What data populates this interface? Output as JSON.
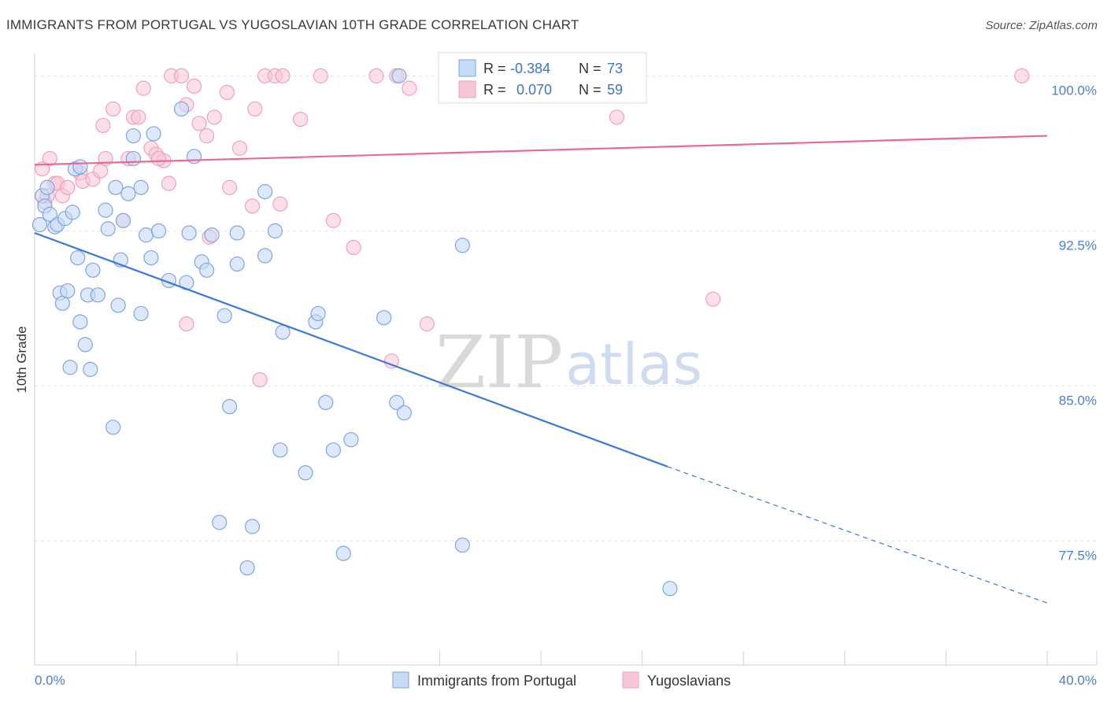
{
  "title": "IMMIGRANTS FROM PORTUGAL VS YUGOSLAVIAN 10TH GRADE CORRELATION CHART",
  "source": "Source: ZipAtlas.com",
  "watermark": {
    "zip": "ZIP",
    "atlas": "atlas"
  },
  "colors": {
    "blue": "#3c78d8",
    "blue_fill": "#c6dbf7",
    "blue_stroke": "#7ea6e0",
    "pink": "#e86a94",
    "pink_fill": "#f8c7d6",
    "pink_stroke": "#f0a0ba",
    "grid": "#e3e3e3",
    "tick_label": "#4a7fd0"
  },
  "legend": {
    "rows": [
      {
        "r_label": "R =",
        "r_value": "-0.384",
        "n_label": "N =",
        "n_value": "73"
      },
      {
        "r_label": "R =",
        "r_value": "0.070",
        "n_label": "N =",
        "n_value": "59"
      }
    ]
  },
  "chart_data": {
    "type": "scatter",
    "title": "IMMIGRANTS FROM PORTUGAL VS YUGOSLAVIAN 10TH GRADE CORRELATION CHART",
    "xlabel": "",
    "ylabel": "10th Grade",
    "xlim": [
      0,
      40
    ],
    "ylim": [
      71.5,
      100.7
    ],
    "x_tick_labels": [
      "0.0%",
      "40.0%"
    ],
    "y_ticks": [
      77.5,
      85.0,
      92.5,
      100.0
    ],
    "y_tick_labels": [
      "77.5%",
      "85.0%",
      "92.5%",
      "100.0%"
    ],
    "grid": true,
    "legend_position": "top-center",
    "series": [
      {
        "name": "Immigrants from Portugal",
        "color": "#3c78d8",
        "r": -0.384,
        "n": 73,
        "trend": {
          "x0": 0,
          "y0": 92.4,
          "x1": 25,
          "y1": 81.1,
          "dashed_to_x": 40,
          "dashed_to_y": 74.5
        },
        "points": [
          [
            0.3,
            94.2
          ],
          [
            0.4,
            93.7
          ],
          [
            0.5,
            94.6
          ],
          [
            0.6,
            93.3
          ],
          [
            0.8,
            92.7
          ],
          [
            0.9,
            92.8
          ],
          [
            1.2,
            93.1
          ],
          [
            1.5,
            93.4
          ],
          [
            1.6,
            95.5
          ],
          [
            1.8,
            95.6
          ],
          [
            1.7,
            91.2
          ],
          [
            1.0,
            89.5
          ],
          [
            1.1,
            89.0
          ],
          [
            1.3,
            89.6
          ],
          [
            1.8,
            88.1
          ],
          [
            2.1,
            89.4
          ],
          [
            2.0,
            87.0
          ],
          [
            1.4,
            85.9
          ],
          [
            2.2,
            85.8
          ],
          [
            2.3,
            90.6
          ],
          [
            2.5,
            89.4
          ],
          [
            2.8,
            93.5
          ],
          [
            2.9,
            92.6
          ],
          [
            3.2,
            94.6
          ],
          [
            3.5,
            93.0
          ],
          [
            3.7,
            94.3
          ],
          [
            3.9,
            96.0
          ],
          [
            3.9,
            97.1
          ],
          [
            4.2,
            94.6
          ],
          [
            4.7,
            97.2
          ],
          [
            4.4,
            92.3
          ],
          [
            4.6,
            91.2
          ],
          [
            4.9,
            92.5
          ],
          [
            3.3,
            88.9
          ],
          [
            3.4,
            91.1
          ],
          [
            4.2,
            88.5
          ],
          [
            3.1,
            83.0
          ],
          [
            5.3,
            90.1
          ],
          [
            6.0,
            90.0
          ],
          [
            5.8,
            98.4
          ],
          [
            6.3,
            96.1
          ],
          [
            6.1,
            92.4
          ],
          [
            6.6,
            91.0
          ],
          [
            6.8,
            90.6
          ],
          [
            7.0,
            92.3
          ],
          [
            7.5,
            88.4
          ],
          [
            7.7,
            84.0
          ],
          [
            8.0,
            92.4
          ],
          [
            8.0,
            90.9
          ],
          [
            7.3,
            78.4
          ],
          [
            8.6,
            78.2
          ],
          [
            8.4,
            76.2
          ],
          [
            9.1,
            91.3
          ],
          [
            9.1,
            94.4
          ],
          [
            9.5,
            92.5
          ],
          [
            9.8,
            87.6
          ],
          [
            9.7,
            81.9
          ],
          [
            10.7,
            80.8
          ],
          [
            11.1,
            88.1
          ],
          [
            11.2,
            88.5
          ],
          [
            11.5,
            84.2
          ],
          [
            11.8,
            81.9
          ],
          [
            12.5,
            82.4
          ],
          [
            12.2,
            76.9
          ],
          [
            13.8,
            88.3
          ],
          [
            14.3,
            84.2
          ],
          [
            14.4,
            100.0
          ],
          [
            14.6,
            83.7
          ],
          [
            16.5,
            100.0
          ],
          [
            16.9,
            91.8
          ],
          [
            16.9,
            77.3
          ],
          [
            25.1,
            75.2
          ],
          [
            0.2,
            92.8
          ]
        ]
      },
      {
        "name": "Yugoslavians",
        "color": "#e86a94",
        "r": 0.07,
        "n": 59,
        "trend": {
          "x0": 0,
          "y0": 95.7,
          "x1": 40,
          "y1": 97.1
        },
        "points": [
          [
            0.3,
            95.5
          ],
          [
            0.4,
            93.9
          ],
          [
            0.5,
            94.2
          ],
          [
            0.6,
            96.0
          ],
          [
            0.8,
            94.8
          ],
          [
            0.9,
            94.8
          ],
          [
            1.1,
            94.2
          ],
          [
            1.3,
            94.6
          ],
          [
            1.8,
            95.3
          ],
          [
            1.9,
            94.9
          ],
          [
            2.3,
            95.0
          ],
          [
            2.6,
            95.4
          ],
          [
            2.7,
            97.6
          ],
          [
            2.8,
            96.0
          ],
          [
            3.1,
            98.4
          ],
          [
            3.5,
            93.0
          ],
          [
            3.7,
            96.0
          ],
          [
            3.9,
            98.0
          ],
          [
            4.1,
            98.0
          ],
          [
            4.3,
            99.4
          ],
          [
            4.6,
            96.5
          ],
          [
            4.8,
            96.2
          ],
          [
            5.1,
            95.9
          ],
          [
            5.3,
            94.8
          ],
          [
            5.4,
            100.0
          ],
          [
            5.8,
            100.0
          ],
          [
            6.0,
            98.6
          ],
          [
            6.3,
            99.5
          ],
          [
            6.5,
            97.7
          ],
          [
            6.8,
            97.1
          ],
          [
            6.9,
            92.2
          ],
          [
            7.1,
            98.0
          ],
          [
            7.6,
            99.2
          ],
          [
            7.7,
            94.6
          ],
          [
            8.1,
            96.5
          ],
          [
            8.6,
            93.7
          ],
          [
            8.7,
            98.4
          ],
          [
            8.9,
            85.3
          ],
          [
            9.1,
            100.0
          ],
          [
            9.5,
            100.0
          ],
          [
            9.8,
            100.0
          ],
          [
            9.7,
            93.8
          ],
          [
            10.5,
            97.9
          ],
          [
            11.3,
            100.0
          ],
          [
            11.8,
            93.0
          ],
          [
            12.6,
            91.7
          ],
          [
            13.5,
            100.0
          ],
          [
            14.1,
            86.2
          ],
          [
            14.3,
            100.0
          ],
          [
            14.8,
            99.4
          ],
          [
            15.5,
            88.0
          ],
          [
            17.5,
            100.0
          ],
          [
            19.8,
            100.0
          ],
          [
            23.0,
            98.0
          ],
          [
            26.8,
            89.2
          ],
          [
            39.0,
            100.0
          ],
          [
            6.0,
            88.0
          ],
          [
            16.3,
            100.0
          ],
          [
            4.9,
            96.0
          ]
        ]
      }
    ]
  },
  "bottom_legend": {
    "items": [
      {
        "label": "Immigrants from Portugal"
      },
      {
        "label": "Yugoslavians"
      }
    ]
  }
}
